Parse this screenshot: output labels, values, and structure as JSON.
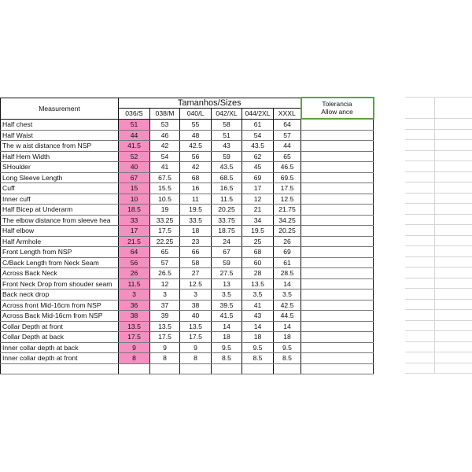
{
  "header": {
    "measurement": "Measurement",
    "sizes_title": "Tamanhos/Sizes",
    "tolerance_line1": "Tolerancia",
    "tolerance_line2": "Allow ance",
    "sizes": [
      "036/S",
      "038/M",
      "040/L",
      "042/XL",
      "044/2XL",
      "XXXL"
    ]
  },
  "highlight_color": "#f48fc0",
  "rows": [
    {
      "name": "Half chest",
      "values": [
        "51",
        "53",
        "55",
        "58",
        "61",
        "64"
      ]
    },
    {
      "name": "Half Waist",
      "values": [
        "44",
        "46",
        "48",
        "51",
        "54",
        "57"
      ]
    },
    {
      "name": "The w aist distance from NSP",
      "values": [
        "41.5",
        "42",
        "42.5",
        "43",
        "43.5",
        "44"
      ]
    },
    {
      "name": "Half Hem Width",
      "values": [
        "52",
        "54",
        "56",
        "59",
        "62",
        "65"
      ]
    },
    {
      "name": "SHoulder",
      "values": [
        "40",
        "41",
        "42",
        "43.5",
        "45",
        "46.5"
      ]
    },
    {
      "name": "Long Sleeve Length",
      "values": [
        "67",
        "67.5",
        "68",
        "68.5",
        "69",
        "69.5"
      ]
    },
    {
      "name": "Cuff",
      "values": [
        "15",
        "15.5",
        "16",
        "16.5",
        "17",
        "17.5"
      ]
    },
    {
      "name": "Inner cuff",
      "values": [
        "10",
        "10.5",
        "11",
        "11.5",
        "12",
        "12.5"
      ]
    },
    {
      "name": "Half Bicep at Underarm",
      "values": [
        "18.5",
        "19",
        "19.5",
        "20.25",
        "21",
        "21.75"
      ]
    },
    {
      "name": "The elbow  distance from sleeve hea",
      "values": [
        "33",
        "33.25",
        "33.5",
        "33.75",
        "34",
        "34.25"
      ]
    },
    {
      "name": "Half elbow",
      "values": [
        "17",
        "17.5",
        "18",
        "18.75",
        "19.5",
        "20.25"
      ]
    },
    {
      "name": "Half Armhole",
      "values": [
        "21.5",
        "22.25",
        "23",
        "24",
        "25",
        "26"
      ]
    },
    {
      "name": "Front Length from NSP",
      "values": [
        "64",
        "65",
        "66",
        "67",
        "68",
        "69"
      ]
    },
    {
      "name": "C/Back Length from Neck Seam",
      "values": [
        "56",
        "57",
        "58",
        "59",
        "60",
        "61"
      ]
    },
    {
      "name": "Across Back Neck",
      "values": [
        "26",
        "26.5",
        "27",
        "27.5",
        "28",
        "28.5"
      ]
    },
    {
      "name": "Front Neck Drop from shouder seam",
      "values": [
        "11.5",
        "12",
        "12.5",
        "13",
        "13.5",
        "14"
      ]
    },
    {
      "name": "Back neck drop",
      "values": [
        "3",
        "3",
        "3",
        "3.5",
        "3.5",
        "3.5"
      ]
    },
    {
      "name": "Across front Mid-16cm from NSP",
      "values": [
        "36",
        "37",
        "38",
        "39.5",
        "41",
        "42.5"
      ]
    },
    {
      "name": "Across Back Mid-16cm from NSP",
      "values": [
        "38",
        "39",
        "40",
        "41.5",
        "43",
        "44.5"
      ]
    },
    {
      "name": "Collar Depth at front",
      "values": [
        "13.5",
        "13.5",
        "13.5",
        "14",
        "14",
        "14"
      ]
    },
    {
      "name": "Collar Depth at back",
      "values": [
        "17.5",
        "17.5",
        "17.5",
        "18",
        "18",
        "18"
      ]
    },
    {
      "name": "Inner collar depth at back",
      "values": [
        "9",
        "9",
        "9",
        "9.5",
        "9.5",
        "9.5"
      ]
    },
    {
      "name": "Inner collar depth at front",
      "values": [
        "8",
        "8",
        "8",
        "8.5",
        "8.5",
        "8.5"
      ]
    }
  ]
}
